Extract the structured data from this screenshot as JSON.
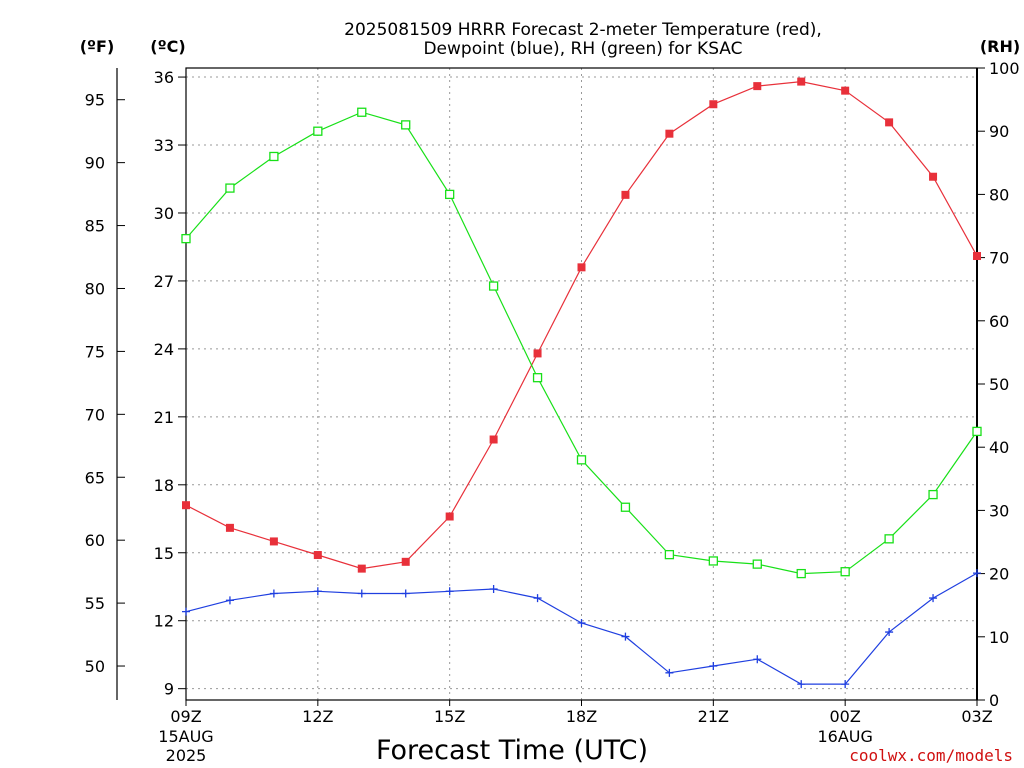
{
  "chart_data": {
    "type": "line",
    "title_line1": "2025081509 HRRR Forecast 2-meter Temperature (red),",
    "title_line2": "Dewpoint (blue), RH (green) for KSAC",
    "xlabel": "Forecast Time (UTC)",
    "credit": "coolwx.com/models",
    "units": {
      "fahrenheit": "(ºF)",
      "celsius": "(ºC)",
      "rh": "(RH)"
    },
    "x_ticks": [
      {
        "label": "09Z",
        "sub1": "15AUG",
        "sub2": "2025",
        "hour": 0
      },
      {
        "label": "12Z",
        "sub1": "",
        "sub2": "",
        "hour": 3
      },
      {
        "label": "15Z",
        "sub1": "",
        "sub2": "",
        "hour": 6
      },
      {
        "label": "18Z",
        "sub1": "",
        "sub2": "",
        "hour": 9
      },
      {
        "label": "21Z",
        "sub1": "",
        "sub2": "",
        "hour": 12
      },
      {
        "label": "00Z",
        "sub1": "16AUG",
        "sub2": "",
        "hour": 15
      },
      {
        "label": "03Z",
        "sub1": "",
        "sub2": "",
        "hour": 18
      }
    ],
    "x_range_hours": [
      0,
      18
    ],
    "celsius_axis": {
      "ylim": [
        8.5,
        36.4
      ],
      "ticks": [
        9,
        12,
        15,
        18,
        21,
        24,
        27,
        30,
        33,
        36
      ]
    },
    "fahrenheit_axis": {
      "ticks": [
        50,
        55,
        60,
        65,
        70,
        75,
        80,
        85,
        90,
        95
      ]
    },
    "rh_axis": {
      "ylim": [
        0,
        100
      ],
      "ticks": [
        0,
        10,
        20,
        30,
        40,
        50,
        60,
        70,
        80,
        90,
        100
      ]
    },
    "grid": true,
    "series": [
      {
        "key": "temperature",
        "color": "#e8303a",
        "marker": "filled-square",
        "axis": "celsius",
        "values": [
          17.1,
          16.1,
          15.5,
          14.9,
          14.3,
          14.6,
          16.6,
          20.0,
          23.8,
          27.6,
          30.8,
          33.5,
          34.8,
          35.6,
          35.8,
          35.4,
          34.0,
          31.6,
          28.1
        ]
      },
      {
        "key": "dewpoint",
        "color": "#1f3fe0",
        "marker": "plus",
        "axis": "celsius",
        "values": [
          12.4,
          12.9,
          13.2,
          13.3,
          13.2,
          13.2,
          13.3,
          13.4,
          13.0,
          11.9,
          11.3,
          9.7,
          10.0,
          10.3,
          9.2,
          9.2,
          11.5,
          13.0,
          14.1
        ]
      },
      {
        "key": "rh",
        "color": "#18e018",
        "marker": "open-square",
        "axis": "rh",
        "values": [
          73,
          81,
          86,
          90,
          93,
          91,
          80,
          65.5,
          51,
          38,
          30.5,
          23,
          22,
          21.5,
          20,
          20.3,
          25.5,
          32.5,
          42.5
        ]
      }
    ]
  }
}
